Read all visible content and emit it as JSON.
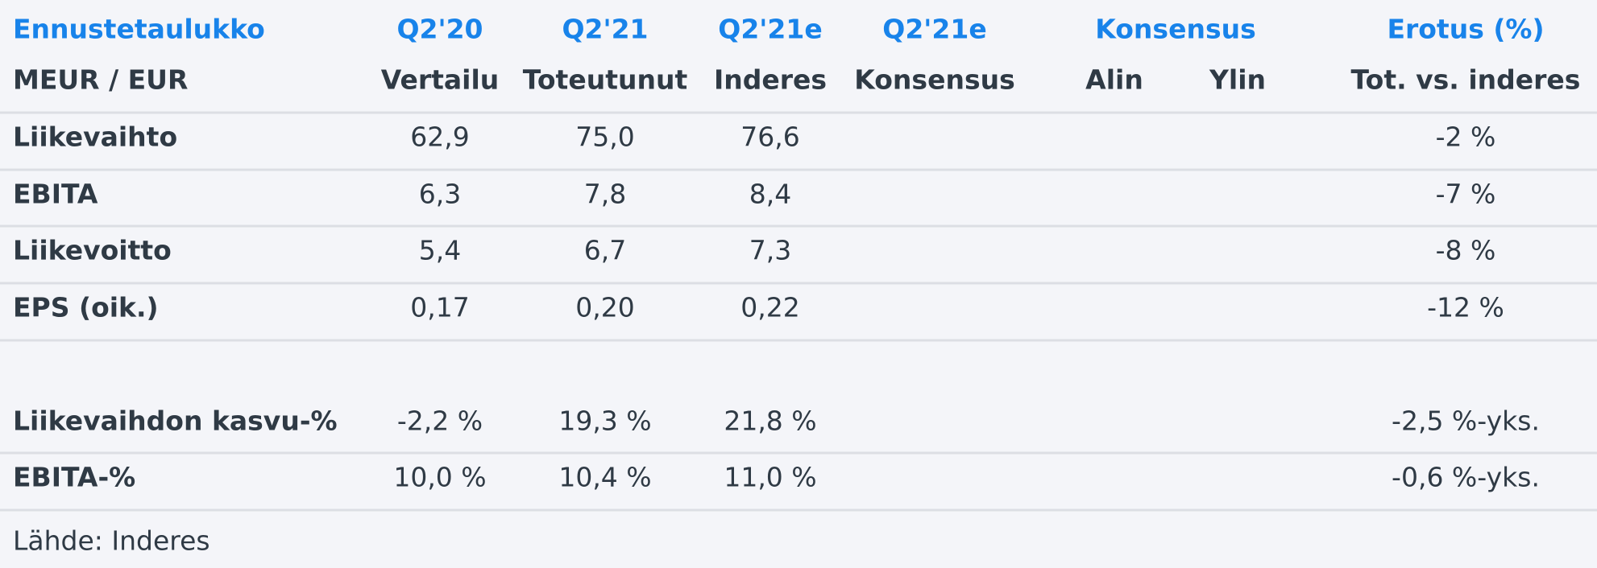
{
  "header": {
    "row1": [
      "Ennustetaulukko",
      "Q2'20",
      "Q2'21",
      "Q2'21e",
      "Q2'21e",
      "Konsensus",
      "Erotus (%)"
    ],
    "row2": [
      "MEUR / EUR",
      "Vertailu",
      "Toteutunut",
      "Inderes",
      "Konsensus",
      "Alin",
      "Ylin",
      "Tot. vs. inderes"
    ]
  },
  "table": {
    "rows": [
      [
        "Liikevaihto",
        "62,9",
        "75,0",
        "76,6",
        "-2 %"
      ],
      [
        "EBITA",
        "6,3",
        "7,8",
        "8,4",
        "-7 %"
      ],
      [
        "Liikevoitto",
        "5,4",
        "6,7",
        "7,3",
        "-8 %"
      ],
      [
        "EPS (oik.)",
        "0,17",
        "0,20",
        "0,22",
        "-12 %"
      ]
    ],
    "growth_rows": [
      [
        "Liikevaihdon kasvu-%",
        "-2,2 %",
        "19,3 %",
        "21,8 %",
        "-2,5 %-yks."
      ],
      [
        "EBITA-%",
        "10,0 %",
        "10,4 %",
        "11,0 %",
        "-0,6 %-yks."
      ]
    ]
  },
  "source": "Lähde: Inderes"
}
